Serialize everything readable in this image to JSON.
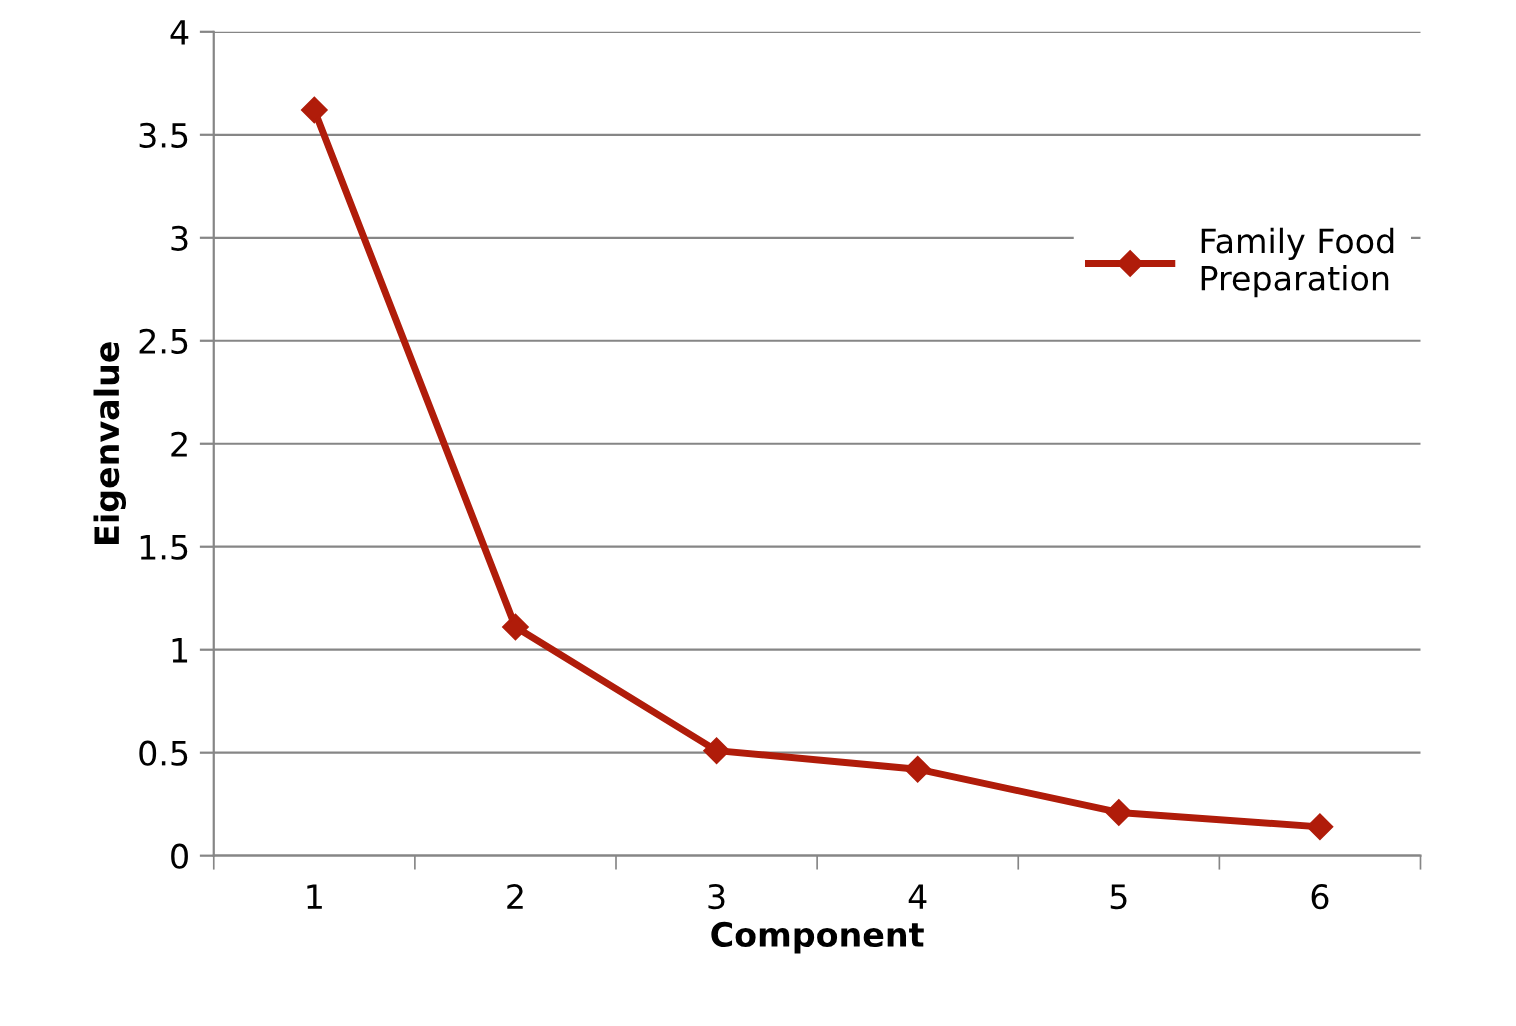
{
  "chart_data": {
    "type": "line",
    "xlabel": "Component",
    "ylabel": "Eigenvalue",
    "categories": [
      "1",
      "2",
      "3",
      "4",
      "5",
      "6"
    ],
    "series": [
      {
        "name": "Family Food\nPreparation",
        "color": "#b01c0a",
        "values": [
          3.62,
          1.11,
          0.51,
          0.42,
          0.21,
          0.14
        ]
      }
    ],
    "ylim": [
      0,
      4
    ],
    "yticks": [
      0,
      0.5,
      1,
      1.5,
      2,
      2.5,
      3,
      3.5,
      4
    ],
    "grid": "y",
    "legend": "right",
    "marker": "diamond",
    "line_style": "solid"
  }
}
